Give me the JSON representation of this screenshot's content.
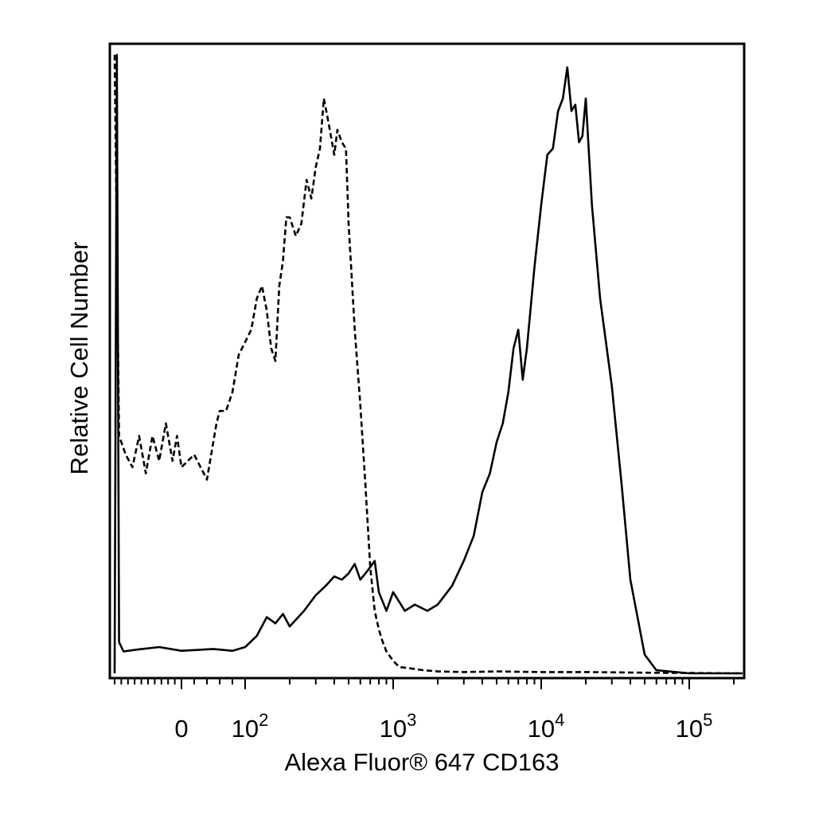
{
  "chart_data": {
    "type": "line",
    "title": "",
    "xlabel": "Alexa Fluor® 647 CD163",
    "ylabel": "Relative Cell Number",
    "x_scale": "biexponential",
    "xlim": [
      -300,
      250000
    ],
    "ylim": [
      0,
      100
    ],
    "grid": false,
    "legend": "none",
    "x_tick_labels": [
      {
        "value": 0,
        "base": "0",
        "exp": ""
      },
      {
        "value": 100,
        "base": "10",
        "exp": "2"
      },
      {
        "value": 1000,
        "base": "10",
        "exp": "3"
      },
      {
        "value": 10000,
        "base": "10",
        "exp": "4"
      },
      {
        "value": 100000,
        "base": "10",
        "exp": "5"
      }
    ],
    "series": [
      {
        "style": "dashed",
        "x": [
          -300,
          -280,
          -250,
          -220,
          -190,
          -160,
          -130,
          -100,
          -70,
          -40,
          -20,
          0,
          20,
          40,
          55,
          60,
          70,
          80,
          90,
          100,
          110,
          120,
          130,
          140,
          150,
          160,
          170,
          180,
          190,
          200,
          220,
          240,
          260,
          280,
          300,
          320,
          340,
          360,
          380,
          400,
          420,
          450,
          480,
          500,
          520,
          550,
          600,
          650,
          700,
          750,
          800,
          850,
          900,
          1000,
          1100,
          1300,
          1600,
          2000,
          3000,
          5000,
          10000,
          20000,
          50000,
          250000
        ],
        "y": [
          99,
          38,
          35,
          33,
          38,
          32,
          38,
          34,
          40,
          34,
          38,
          33,
          35,
          31,
          40,
          42,
          42,
          45,
          51,
          53,
          55,
          60,
          62,
          58,
          52,
          50,
          62,
          66,
          73,
          73,
          70,
          72,
          79,
          76,
          81,
          84,
          92,
          89,
          86,
          83,
          87,
          85,
          84,
          72,
          65,
          55,
          43,
          30,
          17,
          10,
          7,
          5,
          3.5,
          2,
          1,
          0.8,
          0.5,
          0.3,
          0.2,
          0.3,
          0.2,
          0.2,
          0.1,
          0
        ]
      },
      {
        "style": "solid",
        "x": [
          -300,
          -290,
          -280,
          -260,
          -200,
          -100,
          0,
          50,
          80,
          100,
          120,
          140,
          160,
          180,
          200,
          250,
          300,
          350,
          400,
          450,
          500,
          550,
          600,
          650,
          700,
          750,
          800,
          900,
          1000,
          1200,
          1400,
          1700,
          2000,
          2500,
          3000,
          3500,
          4000,
          4500,
          5000,
          5500,
          6000,
          6500,
          7000,
          7500,
          8000,
          9000,
          10000,
          11000,
          12000,
          13000,
          14000,
          15000,
          16000,
          17000,
          18000,
          19000,
          20000,
          22000,
          25000,
          30000,
          35000,
          40000,
          50000,
          60000,
          100000,
          250000
        ],
        "y": [
          0,
          99,
          5,
          3.5,
          3.8,
          4.2,
          3.6,
          3.9,
          3.6,
          4.2,
          6,
          9,
          8,
          9.5,
          7.5,
          10,
          12.5,
          14,
          15.5,
          15,
          16,
          17.5,
          15,
          16,
          17,
          18,
          13,
          10,
          13,
          10,
          11,
          10,
          11,
          14,
          18,
          22,
          29,
          32,
          37,
          40,
          45,
          52,
          55,
          47,
          52,
          65,
          75,
          83,
          84,
          90,
          92,
          97,
          90,
          91,
          85,
          86,
          92,
          75,
          60,
          46,
          30,
          15,
          3,
          0.5,
          0,
          0
        ]
      }
    ]
  }
}
